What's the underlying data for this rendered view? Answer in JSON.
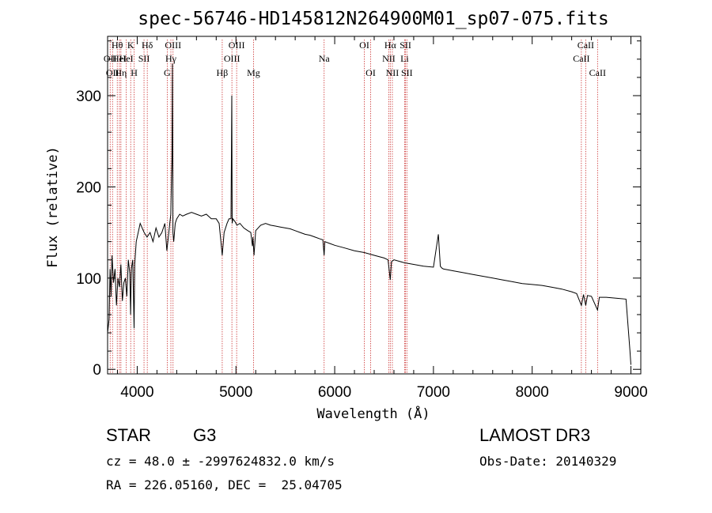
{
  "chart_data": {
    "type": "line",
    "title": "spec-56746-HD145812N264900M01_sp07-075.fits",
    "xlabel": "Wavelength (Å)",
    "ylabel": "Flux (relative)",
    "xlim": [
      3700,
      9100
    ],
    "ylim": [
      -5,
      365
    ],
    "xticks": [
      4000,
      5000,
      6000,
      7000,
      8000,
      9000
    ],
    "xtick_labels": [
      "4000",
      "5000",
      "6000",
      "7000",
      "8000",
      "9000"
    ],
    "yticks": [
      0,
      100,
      200,
      300
    ],
    "ytick_labels": [
      "0",
      "100",
      "200",
      "300"
    ],
    "line_color": "#000000",
    "marker_color": "#cc3333",
    "series": [
      {
        "name": "Flux",
        "x": [
          3700,
          3715,
          3725,
          3735,
          3745,
          3760,
          3775,
          3790,
          3805,
          3820,
          3835,
          3850,
          3865,
          3880,
          3895,
          3910,
          3925,
          3933,
          3940,
          3955,
          3968,
          3975,
          3990,
          4010,
          4030,
          4050,
          4070,
          4100,
          4130,
          4160,
          4190,
          4220,
          4250,
          4280,
          4300,
          4315,
          4330,
          4340,
          4347,
          4352,
          4357,
          4362,
          4370,
          4385,
          4400,
          4430,
          4460,
          4500,
          4550,
          4600,
          4650,
          4700,
          4750,
          4800,
          4830,
          4861,
          4880,
          4910,
          4930,
          4950,
          4958,
          4962,
          4968,
          4990,
          5010,
          5040,
          5080,
          5120,
          5150,
          5167,
          5172,
          5183,
          5200,
          5250,
          5300,
          5350,
          5400,
          5450,
          5500,
          5550,
          5600,
          5650,
          5700,
          5750,
          5800,
          5850,
          5880,
          5893,
          5900,
          5950,
          6000,
          6100,
          6200,
          6300,
          6400,
          6500,
          6540,
          6563,
          6575,
          6600,
          6700,
          6800,
          6900,
          7000,
          7050,
          7070,
          7085,
          7100,
          7200,
          7300,
          7400,
          7500,
          7600,
          7700,
          7800,
          7900,
          8000,
          8100,
          8200,
          8300,
          8400,
          8450,
          8498,
          8520,
          8542,
          8560,
          8600,
          8662,
          8680,
          8750,
          8850,
          8950,
          8990,
          9000
        ],
        "y": [
          40,
          55,
          110,
          80,
          125,
          95,
          110,
          70,
          100,
          90,
          115,
          75,
          95,
          100,
          80,
          120,
          105,
          60,
          110,
          120,
          45,
          115,
          140,
          150,
          160,
          155,
          150,
          145,
          150,
          140,
          155,
          145,
          150,
          160,
          130,
          145,
          160,
          170,
          210,
          230,
          335,
          150,
          140,
          160,
          165,
          170,
          168,
          170,
          172,
          170,
          168,
          170,
          165,
          165,
          160,
          125,
          150,
          160,
          165,
          165,
          300,
          160,
          165,
          162,
          158,
          160,
          155,
          152,
          150,
          135,
          145,
          125,
          152,
          158,
          160,
          158,
          157,
          156,
          155,
          154,
          152,
          150,
          148,
          147,
          145,
          143,
          142,
          125,
          140,
          138,
          136,
          133,
          130,
          128,
          125,
          122,
          120,
          98,
          118,
          120,
          117,
          115,
          113,
          112,
          148,
          113,
          111,
          110,
          108,
          106,
          104,
          102,
          100,
          98,
          96,
          94,
          93,
          92,
          90,
          88,
          85,
          83,
          70,
          82,
          70,
          81,
          80,
          65,
          79,
          79,
          78,
          77,
          20,
          5
        ]
      }
    ],
    "line_markers": [
      {
        "w": 3726,
        "label": "OII",
        "row": 2
      },
      {
        "w": 3750,
        "label": "OII",
        "row": 3
      },
      {
        "w": 3798,
        "label": "Hθ",
        "row": 1
      },
      {
        "w": 3820,
        "label": "HeI",
        "row": 2
      },
      {
        "w": 3835,
        "label": "Hη",
        "row": 3
      },
      {
        "w": 3889,
        "label": "HeI",
        "row": 2
      },
      {
        "w": 3934,
        "label": "K",
        "row": 1
      },
      {
        "w": 3969,
        "label": "H",
        "row": 3
      },
      {
        "w": 4069,
        "label": "SII",
        "row": 2
      },
      {
        "w": 4102,
        "label": "Hδ",
        "row": 1
      },
      {
        "w": 4304,
        "label": "G",
        "row": 3
      },
      {
        "w": 4341,
        "label": "Hγ",
        "row": 2
      },
      {
        "w": 4363,
        "label": "OIII",
        "row": 1
      },
      {
        "w": 4861,
        "label": "Hβ",
        "row": 3
      },
      {
        "w": 4959,
        "label": "OIII",
        "row": 2
      },
      {
        "w": 5007,
        "label": "OIII",
        "row": 1
      },
      {
        "w": 5178,
        "label": "Mg",
        "row": 3
      },
      {
        "w": 5893,
        "label": "Na",
        "row": 2
      },
      {
        "w": 6300,
        "label": "OI",
        "row": 1
      },
      {
        "w": 6364,
        "label": "OI",
        "row": 3
      },
      {
        "w": 6548,
        "label": "NII",
        "row": 2
      },
      {
        "w": 6563,
        "label": "Hα",
        "row": 1
      },
      {
        "w": 6584,
        "label": "NII",
        "row": 3
      },
      {
        "w": 6708,
        "label": "Li",
        "row": 2
      },
      {
        "w": 6717,
        "label": "SII",
        "row": 1
      },
      {
        "w": 6731,
        "label": "SII",
        "row": 3
      },
      {
        "w": 8498,
        "label": "CaII",
        "row": 2
      },
      {
        "w": 8542,
        "label": "CaII",
        "row": 1
      },
      {
        "w": 8662,
        "label": "CaII",
        "row": 3
      }
    ]
  },
  "info": {
    "class_label": "STAR",
    "subclass": "G3",
    "survey": "LAMOST DR3",
    "cz": "cz = 48.0 ± -2997624832.0 km/s",
    "obs_date": "Obs-Date: 20140329",
    "coords": "RA = 226.05160, DEC =  25.04705"
  }
}
